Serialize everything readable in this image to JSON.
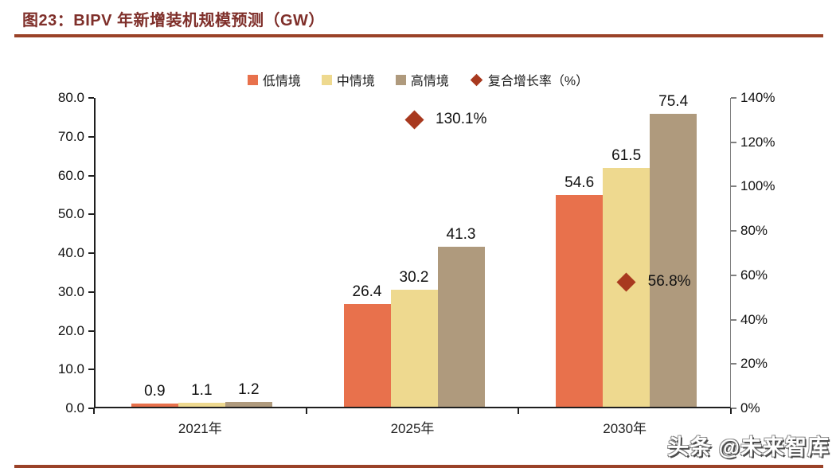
{
  "figure": {
    "title": "图23：BIPV 年新增装机规模预测（GW）",
    "watermark": "头条 @未来智库"
  },
  "colors": {
    "title": "#7F2F2A",
    "rule": "#9A4228",
    "series_low": "#E8714C",
    "series_mid": "#EED98F",
    "series_high": "#AF9A7D",
    "marker": "#A8391F",
    "axis": "#1F1F1F",
    "right_axis": "#808080"
  },
  "legend": [
    {
      "label": "低情境",
      "shape": "square",
      "color": "#E8714C"
    },
    {
      "label": "中情境",
      "shape": "square",
      "color": "#EED98F"
    },
    {
      "label": "高情境",
      "shape": "square",
      "color": "#AF9A7D"
    },
    {
      "label": "复合增长率（%）",
      "shape": "diamond",
      "color": "#A8391F"
    }
  ],
  "chart_data": {
    "type": "bar",
    "title": "图23：BIPV 年新增装机规模预测（GW）",
    "categories": [
      "2021年",
      "2025年",
      "2030年"
    ],
    "series": [
      {
        "name": "低情境",
        "color": "#E8714C",
        "values": [
          0.9,
          26.4,
          54.6
        ]
      },
      {
        "name": "中情境",
        "color": "#EED98F",
        "values": [
          1.1,
          30.2,
          61.5
        ]
      },
      {
        "name": "高情境",
        "color": "#AF9A7D",
        "values": [
          1.2,
          41.3,
          75.4
        ]
      }
    ],
    "markers": {
      "name": "复合增长率（%）",
      "color": "#A8391F",
      "points": [
        {
          "category_index": 1,
          "value": 130.1,
          "label": "130.1%"
        },
        {
          "category_index": 2,
          "value": 56.8,
          "label": "56.8%"
        }
      ]
    },
    "left_axis": {
      "min": 0,
      "max": 80,
      "step": 10,
      "decimals": 1
    },
    "right_axis": {
      "min": 0,
      "max": 140,
      "step": 20,
      "suffix": "%"
    },
    "legend_position": "top",
    "grid": false
  }
}
